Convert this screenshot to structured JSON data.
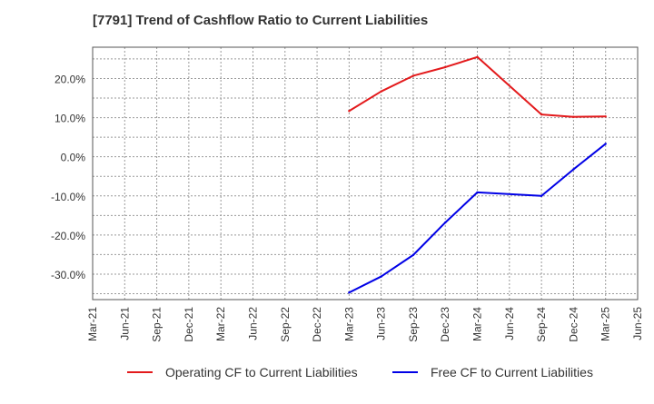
{
  "chart_data": {
    "type": "line",
    "title": "[7791]  Trend of Cashflow Ratio to Current Liabilities",
    "xlabel": "",
    "ylabel": "",
    "x_ticks": [
      "Mar-21",
      "Jun-21",
      "Sep-21",
      "Dec-21",
      "Mar-22",
      "Jun-22",
      "Sep-22",
      "Dec-22",
      "Mar-23",
      "Jun-23",
      "Sep-23",
      "Dec-23",
      "Mar-24",
      "Jun-24",
      "Sep-24",
      "Dec-24",
      "Mar-25",
      "Jun-25"
    ],
    "y_ticks": [
      20,
      10,
      0,
      -10,
      -20,
      -30
    ],
    "y_tick_labels": [
      "20.0%",
      "10.0%",
      "0.0%",
      "-10.0%",
      "-20.0%",
      "-30.0%"
    ],
    "ylim": [
      -36.5,
      28
    ],
    "xlim": [
      "Mar-21",
      "Jun-25"
    ],
    "grid": true,
    "legend_position": "bottom",
    "series": [
      {
        "name": "Operating CF to Current Liabilities",
        "color": "#e31a1c",
        "x": [
          "Mar-23",
          "Jun-23",
          "Sep-23",
          "Dec-23",
          "Mar-24",
          "Sep-24",
          "Dec-24",
          "Mar-25"
        ],
        "values": [
          11.7,
          16.7,
          20.7,
          22.9,
          25.5,
          10.8,
          10.2,
          10.3
        ]
      },
      {
        "name": "Free CF to Current Liabilities",
        "color": "#0000e6",
        "x": [
          "Mar-23",
          "Jun-23",
          "Sep-23",
          "Dec-23",
          "Mar-24",
          "Sep-24",
          "Dec-24",
          "Mar-25"
        ],
        "values": [
          -34.7,
          -30.6,
          -25.1,
          -16.8,
          -9.1,
          -10.0,
          -3.2,
          3.3
        ]
      }
    ]
  }
}
